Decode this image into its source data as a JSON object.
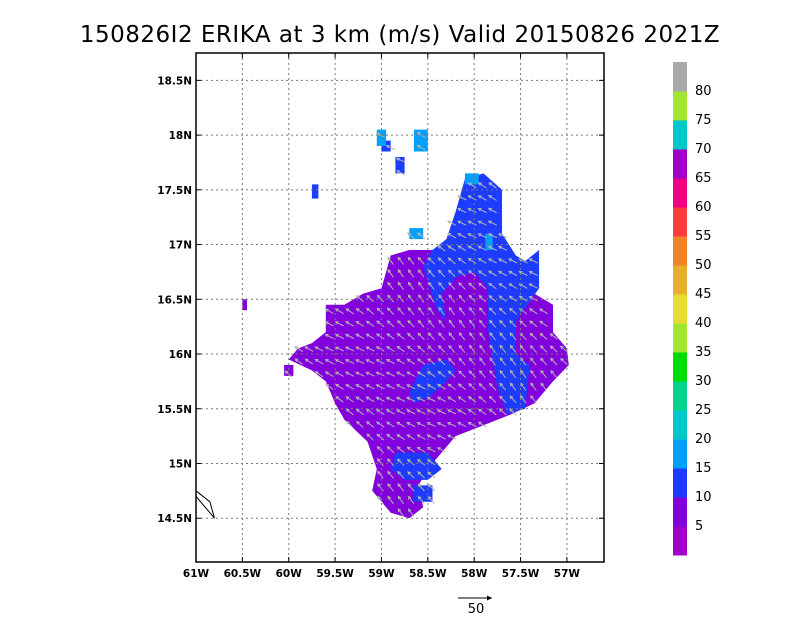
{
  "chart_data": {
    "type": "heatmap",
    "title": "150826I2 ERIKA at 3 km (m/s) Valid 20150826 2021Z",
    "xlabel": "",
    "ylabel": "",
    "xlim": [
      -61,
      -56.6
    ],
    "ylim": [
      14.1,
      18.75
    ],
    "grid": true,
    "x_ticks": [
      {
        "value": -61,
        "label": "61W"
      },
      {
        "value": -60.5,
        "label": "60.5W"
      },
      {
        "value": -60,
        "label": "60W"
      },
      {
        "value": -59.5,
        "label": "59.5W"
      },
      {
        "value": -59,
        "label": "59W"
      },
      {
        "value": -58.5,
        "label": "58.5W"
      },
      {
        "value": -58,
        "label": "58W"
      },
      {
        "value": -57.5,
        "label": "57.5W"
      },
      {
        "value": -57,
        "label": "57W"
      }
    ],
    "y_ticks": [
      {
        "value": 14.5,
        "label": "14.5N"
      },
      {
        "value": 15,
        "label": "15N"
      },
      {
        "value": 15.5,
        "label": "15.5N"
      },
      {
        "value": 16,
        "label": "16N"
      },
      {
        "value": 16.5,
        "label": "16.5N"
      },
      {
        "value": 17,
        "label": "17N"
      },
      {
        "value": 17.5,
        "label": "17.5N"
      },
      {
        "value": 18,
        "label": "18N"
      },
      {
        "value": 18.5,
        "label": "18.5N"
      }
    ],
    "colorbar": {
      "labels": [
        "5",
        "10",
        "15",
        "20",
        "25",
        "30",
        "35",
        "40",
        "45",
        "50",
        "55",
        "60",
        "65",
        "70",
        "75",
        "80"
      ],
      "colors": [
        "#a000c8",
        "#8200dc",
        "#1e3cff",
        "#00a0ff",
        "#00c8c8",
        "#00d28c",
        "#00dc00",
        "#a0e632",
        "#e6dc32",
        "#e6af2d",
        "#f08228",
        "#fa3c3c",
        "#f00082",
        "#a000c8",
        "#00c8c8",
        "#a0e632",
        "#aaaaaa"
      ]
    },
    "vector_reference": {
      "label": "50",
      "value": 50
    },
    "wind_field": {
      "description_units": "m/s",
      "regions": [
        {
          "level": "5-10",
          "color": "#8200dc",
          "polygon": [
            [
              -60.5,
              16.5
            ],
            [
              -60.45,
              16.5
            ],
            [
              -60.45,
              16.4
            ],
            [
              -60.5,
              16.4
            ]
          ]
        },
        {
          "level": "5-10",
          "color": "#8200dc",
          "polygon": [
            [
              -59.6,
              16.2
            ],
            [
              -59.6,
              16.45
            ],
            [
              -59.4,
              16.45
            ],
            [
              -59.2,
              16.55
            ],
            [
              -59.0,
              16.6
            ],
            [
              -58.9,
              16.9
            ],
            [
              -58.7,
              16.95
            ],
            [
              -58.4,
              16.95
            ],
            [
              -58.2,
              16.85
            ],
            [
              -57.9,
              16.75
            ],
            [
              -57.6,
              16.6
            ],
            [
              -57.35,
              16.55
            ],
            [
              -57.15,
              16.45
            ],
            [
              -57.15,
              16.2
            ],
            [
              -57.0,
              16.05
            ],
            [
              -56.98,
              15.9
            ],
            [
              -57.15,
              15.75
            ],
            [
              -57.35,
              15.55
            ],
            [
              -57.6,
              15.45
            ],
            [
              -57.9,
              15.35
            ],
            [
              -58.2,
              15.25
            ],
            [
              -58.35,
              15.1
            ],
            [
              -58.5,
              14.95
            ],
            [
              -58.6,
              14.8
            ],
            [
              -58.55,
              14.6
            ],
            [
              -58.7,
              14.5
            ],
            [
              -58.9,
              14.55
            ],
            [
              -59.1,
              14.75
            ],
            [
              -59.05,
              14.95
            ],
            [
              -59.15,
              15.2
            ],
            [
              -59.4,
              15.4
            ],
            [
              -59.5,
              15.55
            ],
            [
              -59.6,
              15.75
            ],
            [
              -59.75,
              15.85
            ],
            [
              -60.0,
              15.95
            ],
            [
              -59.9,
              16.05
            ],
            [
              -59.75,
              16.1
            ]
          ]
        },
        {
          "level": "5-10",
          "color": "#8200dc",
          "polygon": [
            [
              -60.05,
              15.9
            ],
            [
              -59.95,
              15.9
            ],
            [
              -59.95,
              15.8
            ],
            [
              -60.05,
              15.8
            ]
          ]
        },
        {
          "level": "10-15",
          "color": "#1e3cff",
          "polygon": [
            [
              -58.45,
              16.95
            ],
            [
              -58.3,
              17.05
            ],
            [
              -58.2,
              17.3
            ],
            [
              -58.1,
              17.6
            ],
            [
              -57.9,
              17.65
            ],
            [
              -57.7,
              17.5
            ],
            [
              -57.7,
              17.1
            ],
            [
              -57.55,
              16.9
            ],
            [
              -57.45,
              16.85
            ],
            [
              -57.3,
              16.95
            ],
            [
              -57.3,
              16.6
            ],
            [
              -57.55,
              16.3
            ],
            [
              -57.55,
              16.0
            ],
            [
              -57.4,
              15.9
            ],
            [
              -57.45,
              15.5
            ],
            [
              -57.65,
              15.45
            ],
            [
              -57.75,
              15.7
            ],
            [
              -57.85,
              16.2
            ],
            [
              -57.85,
              16.6
            ],
            [
              -58.0,
              16.75
            ],
            [
              -58.2,
              16.7
            ],
            [
              -58.35,
              16.55
            ],
            [
              -58.3,
              16.3
            ],
            [
              -58.4,
              16.4
            ],
            [
              -58.55,
              16.8
            ]
          ]
        },
        {
          "level": "10-15",
          "color": "#1e3cff",
          "polygon": [
            [
              -58.55,
              15.9
            ],
            [
              -58.3,
              15.95
            ],
            [
              -58.2,
              15.85
            ],
            [
              -58.35,
              15.7
            ],
            [
              -58.5,
              15.6
            ],
            [
              -58.65,
              15.55
            ],
            [
              -58.7,
              15.65
            ]
          ]
        },
        {
          "level": "10-15",
          "color": "#1e3cff",
          "polygon": [
            [
              -58.85,
              15.1
            ],
            [
              -58.5,
              15.1
            ],
            [
              -58.35,
              14.95
            ],
            [
              -58.5,
              14.85
            ],
            [
              -58.75,
              14.85
            ],
            [
              -58.9,
              14.95
            ]
          ]
        },
        {
          "level": "10-15",
          "color": "#1e3cff",
          "polygon": [
            [
              -58.65,
              14.8
            ],
            [
              -58.45,
              14.8
            ],
            [
              -58.45,
              14.65
            ],
            [
              -58.65,
              14.65
            ]
          ]
        },
        {
          "level": "10-15",
          "color": "#1e3cff",
          "polygon": [
            [
              -59.0,
              17.95
            ],
            [
              -58.9,
              17.95
            ],
            [
              -58.9,
              17.85
            ],
            [
              -59.0,
              17.85
            ]
          ]
        },
        {
          "level": "10-15",
          "color": "#1e3cff",
          "polygon": [
            [
              -58.85,
              17.8
            ],
            [
              -58.75,
              17.8
            ],
            [
              -58.75,
              17.65
            ],
            [
              -58.85,
              17.65
            ]
          ]
        },
        {
          "level": "10-15",
          "color": "#1e3cff",
          "polygon": [
            [
              -59.75,
              17.55
            ],
            [
              -59.68,
              17.55
            ],
            [
              -59.68,
              17.42
            ],
            [
              -59.75,
              17.42
            ]
          ]
        },
        {
          "level": "15-20",
          "color": "#00a0ff",
          "polygon": [
            [
              -59.05,
              18.05
            ],
            [
              -58.95,
              18.05
            ],
            [
              -58.95,
              17.9
            ],
            [
              -59.05,
              17.9
            ]
          ]
        },
        {
          "level": "15-20",
          "color": "#00a0ff",
          "polygon": [
            [
              -58.65,
              18.05
            ],
            [
              -58.5,
              18.05
            ],
            [
              -58.5,
              17.85
            ],
            [
              -58.65,
              17.85
            ]
          ]
        },
        {
          "level": "15-20",
          "color": "#00a0ff",
          "polygon": [
            [
              -58.7,
              17.15
            ],
            [
              -58.55,
              17.15
            ],
            [
              -58.55,
              17.05
            ],
            [
              -58.7,
              17.05
            ]
          ]
        },
        {
          "level": "15-20",
          "color": "#00a0ff",
          "polygon": [
            [
              -58.1,
              17.65
            ],
            [
              -57.95,
              17.65
            ],
            [
              -57.95,
              17.55
            ],
            [
              -58.1,
              17.55
            ]
          ]
        },
        {
          "level": "15-20",
          "color": "#00a0ff",
          "polygon": [
            [
              -57.88,
              17.1
            ],
            [
              -57.8,
              17.1
            ],
            [
              -57.8,
              16.95
            ],
            [
              -57.88,
              16.95
            ]
          ]
        }
      ],
      "coastline": [
        [
          -61.0,
          14.75
        ],
        [
          -60.85,
          14.65
        ],
        [
          -60.8,
          14.5
        ],
        [
          -60.95,
          14.65
        ],
        [
          -61.0,
          14.7
        ]
      ]
    }
  }
}
